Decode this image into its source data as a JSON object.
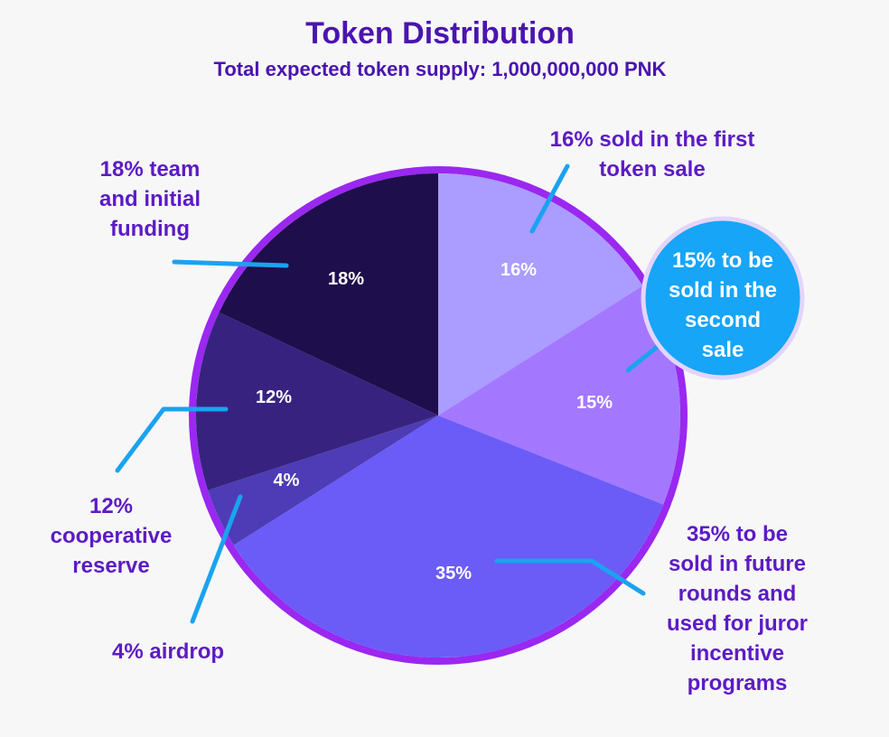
{
  "chart_data": {
    "type": "pie",
    "title": "Token Distribution",
    "subtitle": "Total expected token supply: 1,000,000,000 PNK",
    "slices": [
      {
        "key": "first-sale",
        "value": 16,
        "label": "16%",
        "color": "#ab9cff",
        "annotation": [
          "16% sold in the first",
          "token sale"
        ]
      },
      {
        "key": "second-sale",
        "value": 15,
        "label": "15%",
        "color": "#a378ff",
        "annotation": [
          "15% to be",
          "sold in the",
          "second",
          "sale"
        ]
      },
      {
        "key": "future-rounds",
        "value": 35,
        "label": "35%",
        "color": "#6b5cf7",
        "annotation": [
          "35% to be",
          "sold in future",
          "rounds and",
          "used for juror",
          "incentive",
          "programs"
        ]
      },
      {
        "key": "airdrop",
        "value": 4,
        "label": "4%",
        "color": "#4d3cb5",
        "annotation": [
          "4% airdrop"
        ]
      },
      {
        "key": "cooperative-reserve",
        "value": 12,
        "label": "12%",
        "color": "#37237f",
        "annotation": [
          "12%",
          "cooperative",
          "reserve"
        ]
      },
      {
        "key": "team",
        "value": 18,
        "label": "18%",
        "color": "#1f0e4c",
        "annotation": [
          "18% team",
          "and initial",
          "funding"
        ]
      }
    ],
    "start_angle_deg": 0,
    "direction": "clockwise",
    "legend": "none"
  },
  "colors": {
    "title": "#4a14b0",
    "annotation_text": "#5c1bc4",
    "ring": "#9a28f0",
    "leader_line": "#1aa3f0",
    "slice_label_text": "#ffffff",
    "callout_fill": "#16a5f7",
    "callout_border": "#e3d5fb",
    "background": "#f7f7f8"
  }
}
